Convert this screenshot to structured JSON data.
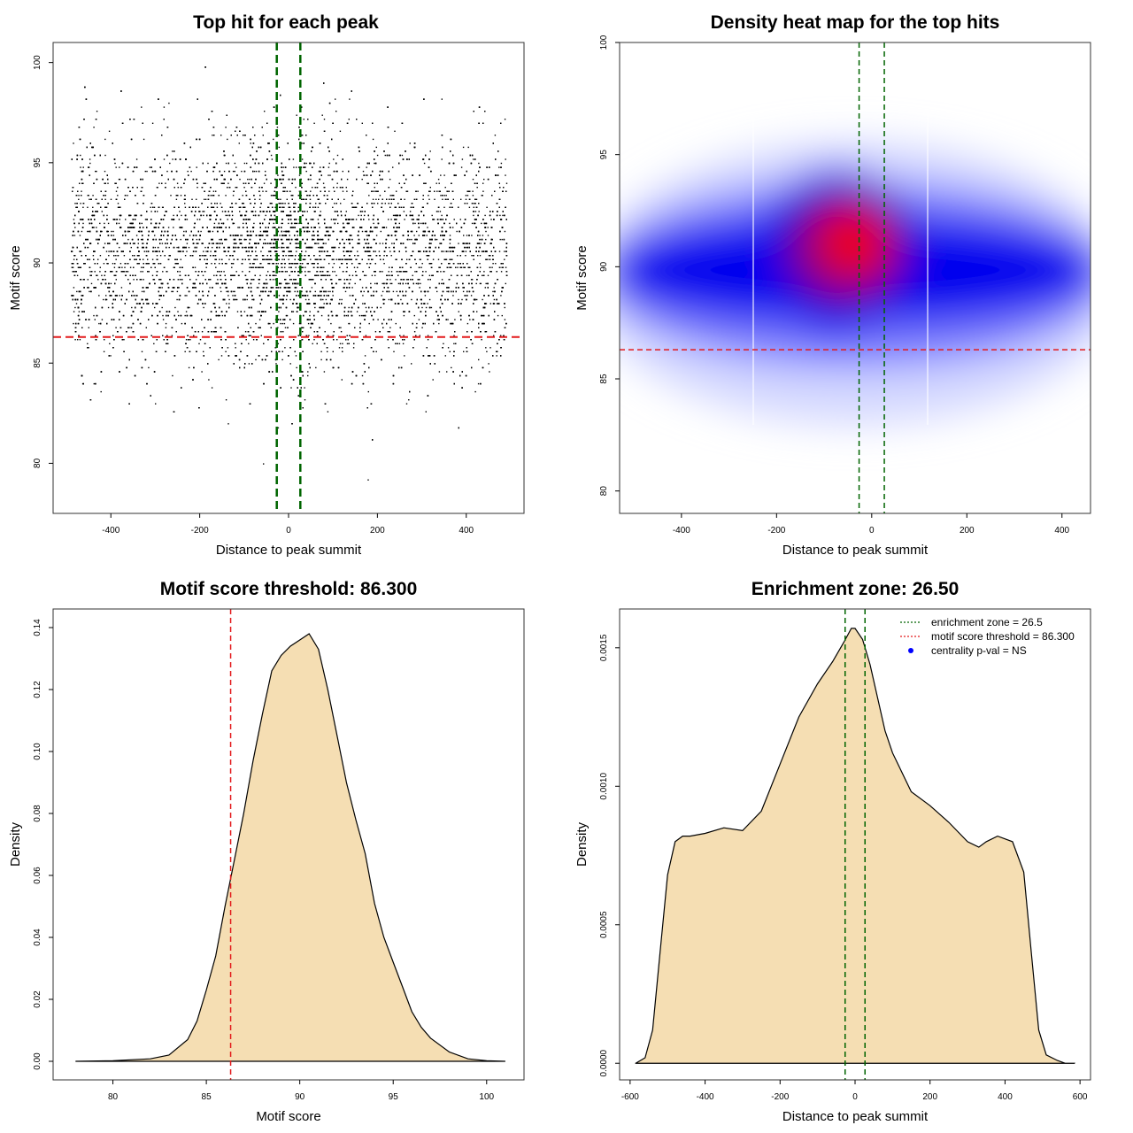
{
  "chart_data": [
    {
      "type": "scatter",
      "title": "Top hit for each peak",
      "xlabel": "Distance to peak summit",
      "ylabel": "Motif score",
      "xlim": [
        -530,
        530
      ],
      "ylim": [
        77.5,
        101
      ],
      "xticks": [
        -400,
        -200,
        0,
        200,
        400
      ],
      "yticks": [
        80,
        85,
        90,
        95,
        100
      ],
      "approximate_distribution": {
        "x_range": [
          -490,
          490
        ],
        "score_mean": 90.5,
        "score_sd": 2.8,
        "central_peak_x": 0,
        "point_count_estimate": 20000
      },
      "reference_lines": {
        "enrichment_zone": [
          -26.5,
          26.5
        ],
        "motif_score_threshold": 86.3
      },
      "colors": {
        "points": "#000000",
        "zone": "#006400",
        "threshold": "#e31a1c"
      }
    },
    {
      "type": "heatmap",
      "title": "Density heat map for the top hits",
      "xlabel": "Distance to peak summit",
      "ylabel": "Motif score",
      "xlim": [
        -530,
        460
      ],
      "ylim": [
        79,
        100
      ],
      "xticks": [
        -400,
        -200,
        0,
        200,
        400
      ],
      "yticks": [
        80,
        85,
        90,
        95,
        100
      ],
      "density_peak": {
        "x": 0,
        "y": 91
      },
      "reference_lines": {
        "enrichment_zone": [
          -26.5,
          26.5
        ],
        "motif_score_threshold": 86.3
      },
      "colors": {
        "low": "#ffffff",
        "mid": "#0000ff",
        "high": "#ff0000",
        "zone": "#006400",
        "threshold": "#e31a1c"
      }
    },
    {
      "type": "area",
      "title": "Motif score threshold: 86.300",
      "xlabel": "Motif score",
      "ylabel": "Density",
      "xlim": [
        76.8,
        102
      ],
      "ylim": [
        -0.006,
        0.146
      ],
      "xticks": [
        80,
        85,
        90,
        95,
        100
      ],
      "yticks": [
        0.0,
        0.02,
        0.04,
        0.06,
        0.08,
        0.1,
        0.12,
        0.14
      ],
      "ytick_labels": [
        "0.00",
        "0.02",
        "0.04",
        "0.06",
        "0.08",
        "0.10",
        "0.12",
        "0.14"
      ],
      "x": [
        78,
        80,
        82,
        83,
        84,
        84.5,
        85,
        85.5,
        86,
        86.5,
        87,
        87.5,
        88,
        88.5,
        89,
        89.5,
        90,
        90.5,
        91,
        91.5,
        92,
        92.5,
        93,
        93.5,
        94,
        94.5,
        95,
        95.5,
        96,
        96.5,
        97,
        98,
        99,
        100,
        101
      ],
      "y": [
        0,
        0.0002,
        0.0008,
        0.002,
        0.007,
        0.013,
        0.023,
        0.034,
        0.05,
        0.065,
        0.08,
        0.097,
        0.112,
        0.126,
        0.131,
        0.134,
        0.136,
        0.138,
        0.133,
        0.12,
        0.105,
        0.09,
        0.078,
        0.067,
        0.051,
        0.04,
        0.032,
        0.024,
        0.016,
        0.011,
        0.0075,
        0.003,
        0.0008,
        0.0002,
        0
      ],
      "reference_lines": {
        "motif_score_threshold": 86.3
      },
      "colors": {
        "fill": "#f5deb3",
        "line": "#000000",
        "threshold": "#e31a1c"
      }
    },
    {
      "type": "area",
      "title": "Enrichment zone: 26.50",
      "xlabel": "Distance to peak summit",
      "ylabel": "Density",
      "xlim": [
        -628,
        628
      ],
      "ylim": [
        -6e-05,
        0.00164
      ],
      "xticks": [
        -600,
        -400,
        -200,
        0,
        200,
        400,
        600
      ],
      "yticks": [
        0.0,
        0.0005,
        0.001,
        0.0015
      ],
      "ytick_labels": [
        "0.0000",
        "0.0005",
        "0.0010",
        "0.0015"
      ],
      "x": [
        -585,
        -560,
        -540,
        -520,
        -500,
        -480,
        -460,
        -440,
        -400,
        -350,
        -300,
        -250,
        -200,
        -150,
        -100,
        -60,
        -30,
        -10,
        0,
        20,
        40,
        60,
        80,
        100,
        150,
        200,
        250,
        300,
        330,
        350,
        380,
        420,
        450,
        470,
        490,
        510,
        540,
        560,
        585
      ],
      "y": [
        0,
        2e-05,
        0.00012,
        0.0004,
        0.00068,
        0.0008,
        0.00082,
        0.00082,
        0.00083,
        0.00085,
        0.00084,
        0.00091,
        0.00108,
        0.00125,
        0.00137,
        0.00145,
        0.00152,
        0.00157,
        0.00157,
        0.00153,
        0.00144,
        0.00132,
        0.0012,
        0.00112,
        0.00098,
        0.00093,
        0.00087,
        0.0008,
        0.00078,
        0.0008,
        0.00082,
        0.0008,
        0.00069,
        0.0004,
        0.00012,
        3e-05,
        1e-05,
        0,
        0
      ],
      "reference_lines": {
        "enrichment_zone": [
          -26.5,
          26.5
        ]
      },
      "legend": {
        "position": "top-right",
        "entries": [
          {
            "label": "enrichment zone = 26.5",
            "style": "dotted-line",
            "color": "#006400"
          },
          {
            "label": "motif score threshold = 86.300",
            "style": "dotted-line",
            "color": "#e31a1c"
          },
          {
            "label": "centrality p-val = NS",
            "style": "point",
            "color": "#0000ff"
          }
        ]
      },
      "colors": {
        "fill": "#f5deb3",
        "line": "#000000",
        "zone": "#006400"
      }
    }
  ]
}
